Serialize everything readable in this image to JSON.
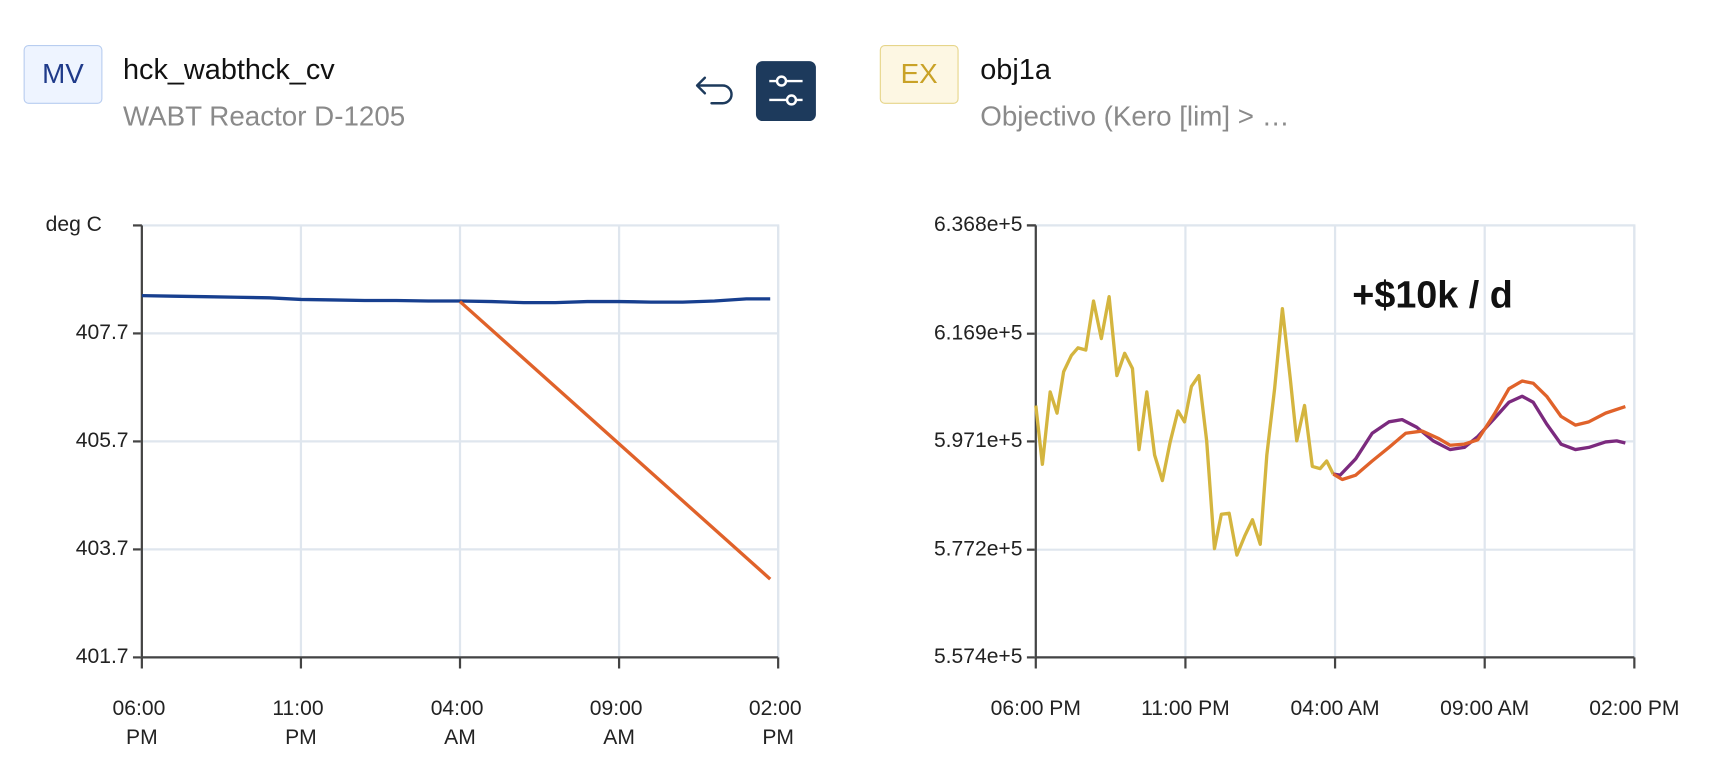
{
  "header": [
    {
      "badge": "MV",
      "title": "hck_wabthck_cv",
      "subtitle": "WABT Reactor D-1205"
    },
    {
      "badge": "EX",
      "title": "obj1a",
      "subtitle": "Objectivo (Kero [lim] > …"
    }
  ],
  "chart_data": [
    {
      "type": "line",
      "y_label": "deg C",
      "grid": true,
      "xlim": [
        0,
        20
      ],
      "xticks": [
        {
          "value": 0,
          "label": "06:00 PM"
        },
        {
          "value": 5,
          "label": "11:00 PM"
        },
        {
          "value": 10,
          "label": "04:00 AM"
        },
        {
          "value": 15,
          "label": "09:00 AM"
        },
        {
          "value": 20,
          "label": "02:00 PM"
        }
      ],
      "ylim": [
        401.7,
        409.7
      ],
      "yticks": [
        401.7,
        403.7,
        405.7,
        407.7
      ],
      "series": [
        {
          "color": "#173f8f",
          "x": [
            0,
            1,
            2,
            3,
            4,
            5,
            6,
            7,
            8,
            9,
            10,
            11,
            12,
            13,
            14,
            15,
            16,
            17,
            18,
            19,
            19.75
          ],
          "values": [
            408.4,
            408.39,
            408.38,
            408.37,
            408.36,
            408.33,
            408.32,
            408.31,
            408.31,
            408.3,
            408.3,
            408.29,
            408.27,
            408.27,
            408.29,
            408.29,
            408.28,
            408.28,
            408.3,
            408.34,
            408.34
          ]
        },
        {
          "color": "#e0622a",
          "x": [
            10,
            19.75
          ],
          "values": [
            408.29,
            403.15
          ]
        }
      ]
    },
    {
      "type": "line",
      "annotation": "+$10k / d",
      "grid": true,
      "xlim": [
        0,
        20
      ],
      "xticks": [
        {
          "value": 0,
          "label": "06:00 PM"
        },
        {
          "value": 5,
          "label": "11:00 PM"
        },
        {
          "value": 10,
          "label": "04:00 AM"
        },
        {
          "value": 15,
          "label": "09:00 AM"
        },
        {
          "value": 20,
          "label": "02:00 PM"
        }
      ],
      "ylim": [
        557400,
        636800
      ],
      "yticks": [
        {
          "value": 557400,
          "label": "5.574e+5"
        },
        {
          "value": 577200,
          "label": "5.772e+5"
        },
        {
          "value": 597100,
          "label": "5.971e+5"
        },
        {
          "value": 616900,
          "label": "6.169e+5"
        },
        {
          "value": 636800,
          "label": "6.368e+5"
        }
      ],
      "series": [
        {
          "color": "#d4b53f",
          "x": [
            0,
            0.22,
            0.48,
            0.71,
            0.93,
            1.19,
            1.41,
            1.67,
            1.93,
            2.19,
            2.45,
            2.71,
            2.97,
            3.23,
            3.45,
            3.71,
            3.97,
            4.23,
            4.49,
            4.75,
            4.97,
            5.2,
            5.45,
            5.71,
            5.97,
            6.2,
            6.46,
            6.72,
            6.98,
            7.24,
            7.5,
            7.72,
            7.98,
            8.24,
            8.5,
            8.72,
            8.98,
            9.24,
            9.5,
            9.72,
            9.94
          ],
          "values": [
            603700,
            592900,
            606200,
            602300,
            609900,
            612900,
            614300,
            613900,
            622900,
            616000,
            623700,
            609200,
            613300,
            610500,
            595600,
            606200,
            594600,
            589900,
            597000,
            602700,
            600700,
            607200,
            609200,
            597200,
            577400,
            583700,
            583900,
            576200,
            579700,
            582700,
            578200,
            594600,
            606800,
            621500,
            608800,
            597200,
            603700,
            592500,
            592100,
            593500,
            591100
          ]
        },
        {
          "color": "#7b2a7e",
          "x": [
            9.94,
            10.17,
            10.69,
            11.24,
            11.8,
            12.24,
            12.73,
            13.28,
            13.84,
            14.32,
            14.77,
            15.32,
            15.81,
            16.25,
            16.62,
            17.07,
            17.55,
            18.03,
            18.48,
            19.04,
            19.41,
            19.7
          ],
          "values": [
            591100,
            590900,
            593900,
            598600,
            600700,
            601100,
            599700,
            597200,
            595600,
            596000,
            598000,
            601300,
            604300,
            605400,
            604300,
            600300,
            596600,
            595600,
            596000,
            597000,
            597200,
            596800
          ]
        },
        {
          "color": "#e0622a",
          "x": [
            9.94,
            10.24,
            10.69,
            11.24,
            11.8,
            12.36,
            12.91,
            13.47,
            13.84,
            14.32,
            14.77,
            15.32,
            15.81,
            16.25,
            16.62,
            17.07,
            17.55,
            18.03,
            18.48,
            19.04,
            19.7
          ],
          "values": [
            591100,
            590100,
            590900,
            593500,
            596000,
            598600,
            599000,
            597600,
            596400,
            596600,
            597400,
            602100,
            606800,
            608200,
            607800,
            605400,
            601700,
            600100,
            600700,
            602300,
            603500
          ]
        }
      ]
    }
  ]
}
